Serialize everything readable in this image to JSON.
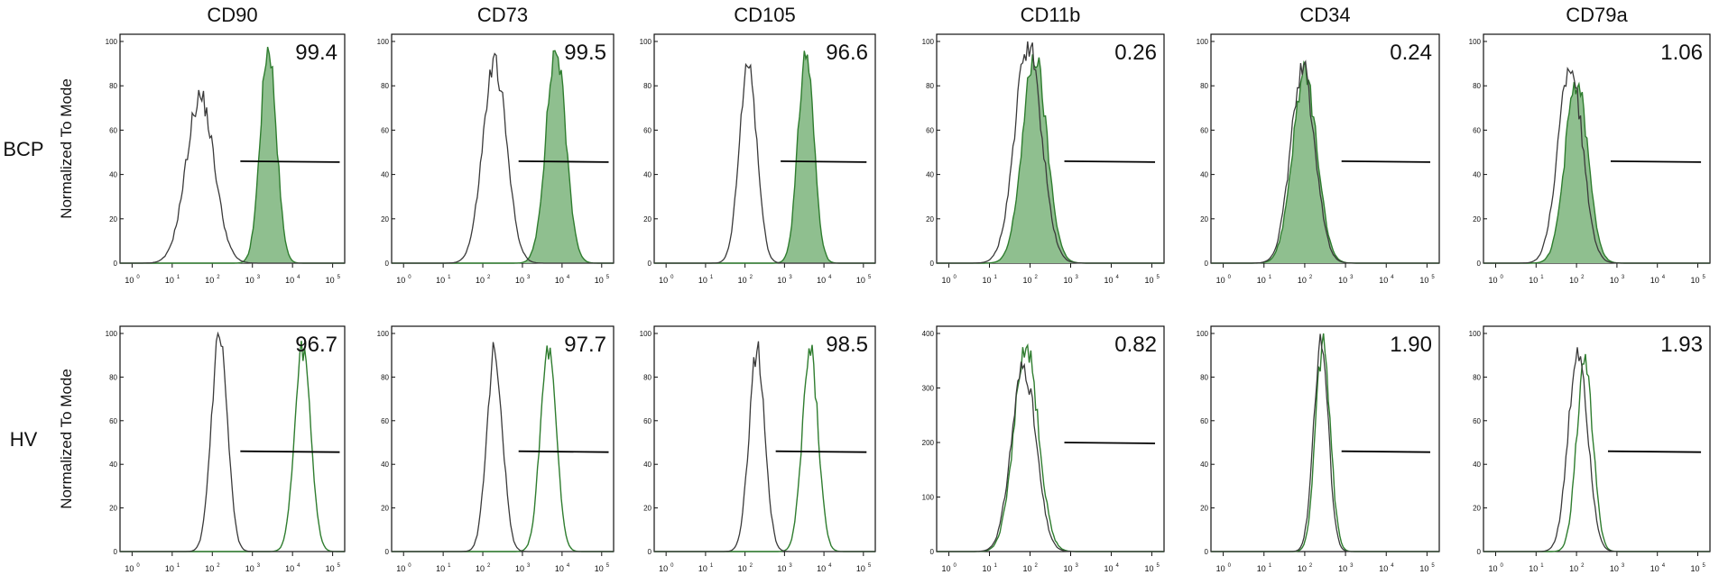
{
  "chart_data": {
    "type": "histogram-grid",
    "columns": [
      "CD90",
      "CD73",
      "CD105",
      "CD11b",
      "CD34",
      "CD79a"
    ],
    "rows": [
      "BCP",
      "HV"
    ],
    "ylabel": "Normalized  To Mode",
    "x_scale": "log",
    "xlim": [
      0.5,
      200000
    ],
    "x_tick_base": "10",
    "x_tick_exponents": [
      "0",
      "1",
      "2",
      "3",
      "4",
      "5"
    ],
    "panels": [
      {
        "row": "BCP",
        "marker": "CD90",
        "percent": "99.4",
        "ymax": 100,
        "yticks": [
          "0",
          "20",
          "40",
          "60",
          "80",
          "100"
        ],
        "gate": [
          500,
          150000
        ],
        "gate_y": 46,
        "control": {
          "peak_x": 50,
          "width": 0.35,
          "height": 75
        },
        "stained": {
          "peak_x": 2500,
          "width": 0.2,
          "height": 98
        }
      },
      {
        "row": "BCP",
        "marker": "CD73",
        "percent": "99.5",
        "ymax": 100,
        "yticks": [
          "0",
          "20",
          "40",
          "60",
          "80",
          "100"
        ],
        "gate": [
          800,
          150000
        ],
        "gate_y": 46,
        "control": {
          "peak_x": 200,
          "width": 0.3,
          "height": 90
        },
        "stained": {
          "peak_x": 7000,
          "width": 0.25,
          "height": 96
        }
      },
      {
        "row": "BCP",
        "marker": "CD105",
        "percent": "96.6",
        "ymax": 100,
        "yticks": [
          "0",
          "20",
          "40",
          "60",
          "80",
          "100"
        ],
        "gate": [
          800,
          120000
        ],
        "gate_y": 46,
        "control": {
          "peak_x": 120,
          "width": 0.22,
          "height": 90
        },
        "stained": {
          "peak_x": 3500,
          "width": 0.2,
          "height": 95
        }
      },
      {
        "row": "BCP",
        "marker": "CD11b",
        "percent": "0.26",
        "ymax": 100,
        "yticks": [
          "0",
          "20",
          "40",
          "60",
          "80",
          "100"
        ],
        "gate": [
          700,
          120000
        ],
        "gate_y": 46,
        "control": {
          "peak_x": 90,
          "width": 0.33,
          "height": 98
        },
        "stained": {
          "peak_x": 130,
          "width": 0.3,
          "height": 93
        }
      },
      {
        "row": "BCP",
        "marker": "CD34",
        "percent": "0.24",
        "ymax": 100,
        "yticks": [
          "0",
          "20",
          "40",
          "60",
          "80",
          "100"
        ],
        "gate": [
          800,
          120000
        ],
        "gate_y": 46,
        "control": {
          "peak_x": 90,
          "width": 0.3,
          "height": 87
        },
        "stained": {
          "peak_x": 100,
          "width": 0.3,
          "height": 85
        }
      },
      {
        "row": "BCP",
        "marker": "CD79a",
        "percent": "1.06",
        "ymax": 100,
        "yticks": [
          "0",
          "20",
          "40",
          "60",
          "80",
          "100"
        ],
        "gate": [
          700,
          120000
        ],
        "gate_y": 46,
        "control": {
          "peak_x": 70,
          "width": 0.3,
          "height": 90
        },
        "stained": {
          "peak_x": 100,
          "width": 0.28,
          "height": 82
        }
      },
      {
        "row": "HV",
        "marker": "CD90",
        "percent": "96.7",
        "ymax": 100,
        "yticks": [
          "0",
          "20",
          "40",
          "60",
          "80",
          "100"
        ],
        "gate": [
          500,
          150000
        ],
        "gate_y": 46,
        "control": {
          "peak_x": 150,
          "width": 0.2,
          "height": 97
        },
        "stained": {
          "peak_x": 18000,
          "width": 0.2,
          "height": 93
        }
      },
      {
        "row": "HV",
        "marker": "CD73",
        "percent": "97.7",
        "ymax": 100,
        "yticks": [
          "0",
          "20",
          "40",
          "60",
          "80",
          "100"
        ],
        "gate": [
          800,
          150000
        ],
        "gate_y": 46,
        "control": {
          "peak_x": 200,
          "width": 0.2,
          "height": 92
        },
        "stained": {
          "peak_x": 4500,
          "width": 0.2,
          "height": 92
        }
      },
      {
        "row": "HV",
        "marker": "CD105",
        "percent": "98.5",
        "ymax": 100,
        "yticks": [
          "0",
          "20",
          "40",
          "60",
          "80",
          "100"
        ],
        "gate": [
          600,
          120000
        ],
        "gate_y": 46,
        "control": {
          "peak_x": 200,
          "width": 0.2,
          "height": 92
        },
        "stained": {
          "peak_x": 4500,
          "width": 0.2,
          "height": 92
        }
      },
      {
        "row": "HV",
        "marker": "CD11b",
        "percent": "0.82",
        "ymax": 400,
        "yticks": [
          "0",
          "100",
          "200",
          "300",
          "400"
        ],
        "gate": [
          700,
          120000
        ],
        "gate_y": 200,
        "control": {
          "peak_x": 70,
          "width": 0.3,
          "height": 340
        },
        "stained": {
          "peak_x": 80,
          "width": 0.3,
          "height": 375
        }
      },
      {
        "row": "HV",
        "marker": "CD34",
        "percent": "1.90",
        "ymax": 100,
        "yticks": [
          "0",
          "20",
          "40",
          "60",
          "80",
          "100"
        ],
        "gate": [
          800,
          120000
        ],
        "gate_y": 46,
        "control": {
          "peak_x": 250,
          "width": 0.18,
          "height": 97
        },
        "stained": {
          "peak_x": 280,
          "width": 0.18,
          "height": 95
        }
      },
      {
        "row": "HV",
        "marker": "CD79a",
        "percent": "1.93",
        "ymax": 100,
        "yticks": [
          "0",
          "20",
          "40",
          "60",
          "80",
          "100"
        ],
        "gate": [
          600,
          120000
        ],
        "gate_y": 46,
        "control": {
          "peak_x": 110,
          "width": 0.24,
          "height": 93
        },
        "stained": {
          "peak_x": 160,
          "width": 0.2,
          "height": 88
        }
      }
    ],
    "colors": {
      "control_line": "#3a3a3a",
      "stained_line": "#2f7d2f",
      "stained_fill": "#8fbf8f",
      "gate_line": "#000000"
    },
    "grid": false,
    "legend": "none"
  }
}
